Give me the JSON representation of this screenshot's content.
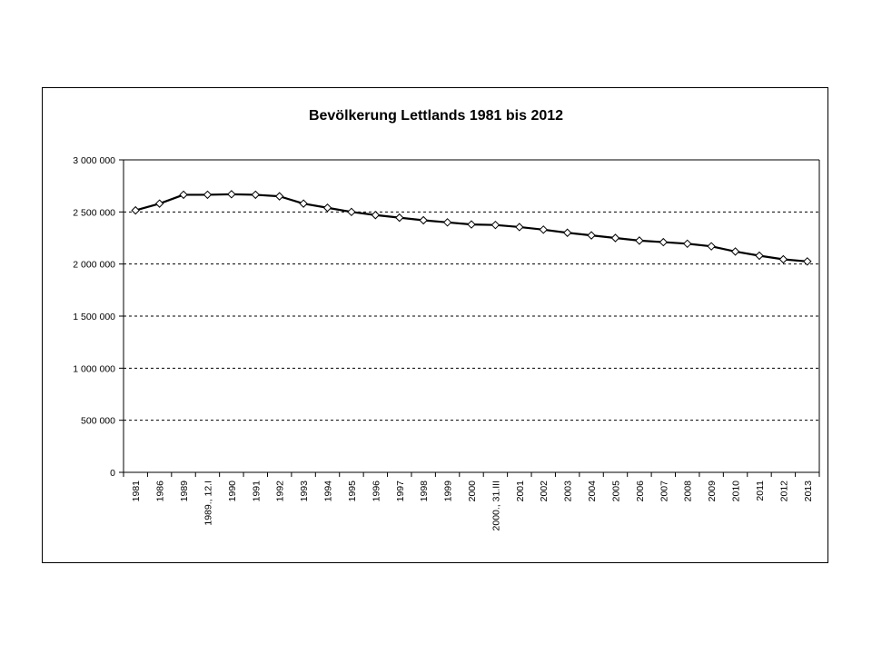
{
  "chart_data": {
    "type": "line",
    "title": "Bevölkerung Lettlands 1981 bis 2012",
    "xlabel": "",
    "ylabel": "",
    "ylim": [
      0,
      3000000
    ],
    "y_ticks": [
      0,
      500000,
      1000000,
      1500000,
      2000000,
      2500000,
      3000000
    ],
    "y_tick_labels": [
      "0",
      "500 000",
      "1 000 000",
      "1 500 000",
      "2 000 000",
      "2 500 000",
      "3 000 000"
    ],
    "grid": "horizontal dashed",
    "marker": "diamond",
    "line_color": "#000000",
    "categories": [
      "1981",
      "1986",
      "1989",
      "1989., 12.I",
      "1990",
      "1991",
      "1992",
      "1993",
      "1994",
      "1995",
      "1996",
      "1997",
      "1998",
      "1999",
      "2000",
      "2000., 31.III",
      "2001",
      "2002",
      "2003",
      "2004",
      "2005",
      "2006",
      "2007",
      "2008",
      "2009",
      "2010",
      "2011",
      "2012",
      "2013"
    ],
    "series": [
      {
        "values": [
          2515000,
          2580000,
          2665000,
          2665000,
          2670000,
          2665000,
          2650000,
          2580000,
          2540000,
          2500000,
          2470000,
          2445000,
          2420000,
          2400000,
          2380000,
          2375000,
          2355000,
          2330000,
          2300000,
          2275000,
          2250000,
          2225000,
          2210000,
          2195000,
          2170000,
          2120000,
          2080000,
          2045000,
          2025000
        ]
      }
    ]
  }
}
